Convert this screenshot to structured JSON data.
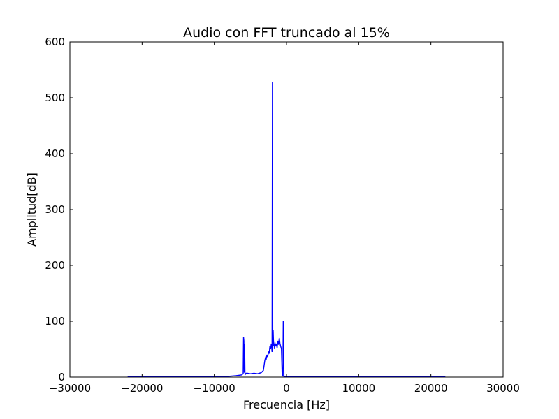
{
  "chart_data": {
    "type": "line",
    "title": "Audio con FFT truncado al 15%",
    "xlabel": "Frecuencia [Hz]",
    "ylabel": "Amplitud[dB]",
    "xlim": [
      -30000,
      30000
    ],
    "ylim": [
      0,
      600
    ],
    "xticks": [
      -30000,
      -20000,
      -10000,
      0,
      10000,
      20000,
      30000
    ],
    "yticks": [
      0,
      100,
      200,
      300,
      400,
      500,
      600
    ],
    "xtick_labels": [
      "−30000",
      "−20000",
      "−10000",
      "0",
      "10000",
      "20000",
      "30000"
    ],
    "ytick_labels": [
      "0",
      "100",
      "200",
      "300",
      "400",
      "500",
      "600"
    ],
    "grid": false,
    "line_color": "#0000ff",
    "series": [
      {
        "x": [
          -22000,
          -8500,
          -8000,
          -7000,
          -6200,
          -6000,
          -5950,
          -5900,
          -5850,
          -5800,
          -5750,
          -5700,
          -5650,
          -5600,
          -5400,
          -5000,
          -4500,
          -4000,
          -3500,
          -3200,
          -3000,
          -2900,
          -2800,
          -2700,
          -2600,
          -2500,
          -2400,
          -2300,
          -2200,
          -2100,
          -2000,
          -1950,
          -1900,
          -1850,
          -1800,
          -1750,
          -1700,
          -1650,
          -1600,
          -1550,
          -1500,
          -1400,
          -1300,
          -1200,
          -1100,
          -1000,
          -900,
          -800,
          -700,
          -600,
          -500,
          -450,
          -400,
          -350,
          -300,
          -250,
          -200,
          0,
          22000
        ],
        "y": [
          1,
          1,
          1.5,
          2.5,
          4,
          6,
          72,
          65,
          8,
          60,
          6,
          5,
          6,
          7,
          7,
          6,
          7,
          6,
          8,
          12,
          30,
          35,
          33,
          40,
          36,
          45,
          42,
          55,
          50,
          60,
          45,
          528,
          50,
          85,
          65,
          55,
          60,
          50,
          62,
          58,
          55,
          60,
          52,
          65,
          58,
          70,
          60,
          55,
          50,
          3,
          2,
          100,
          95,
          2,
          1,
          1,
          1,
          1,
          1
        ]
      }
    ]
  }
}
